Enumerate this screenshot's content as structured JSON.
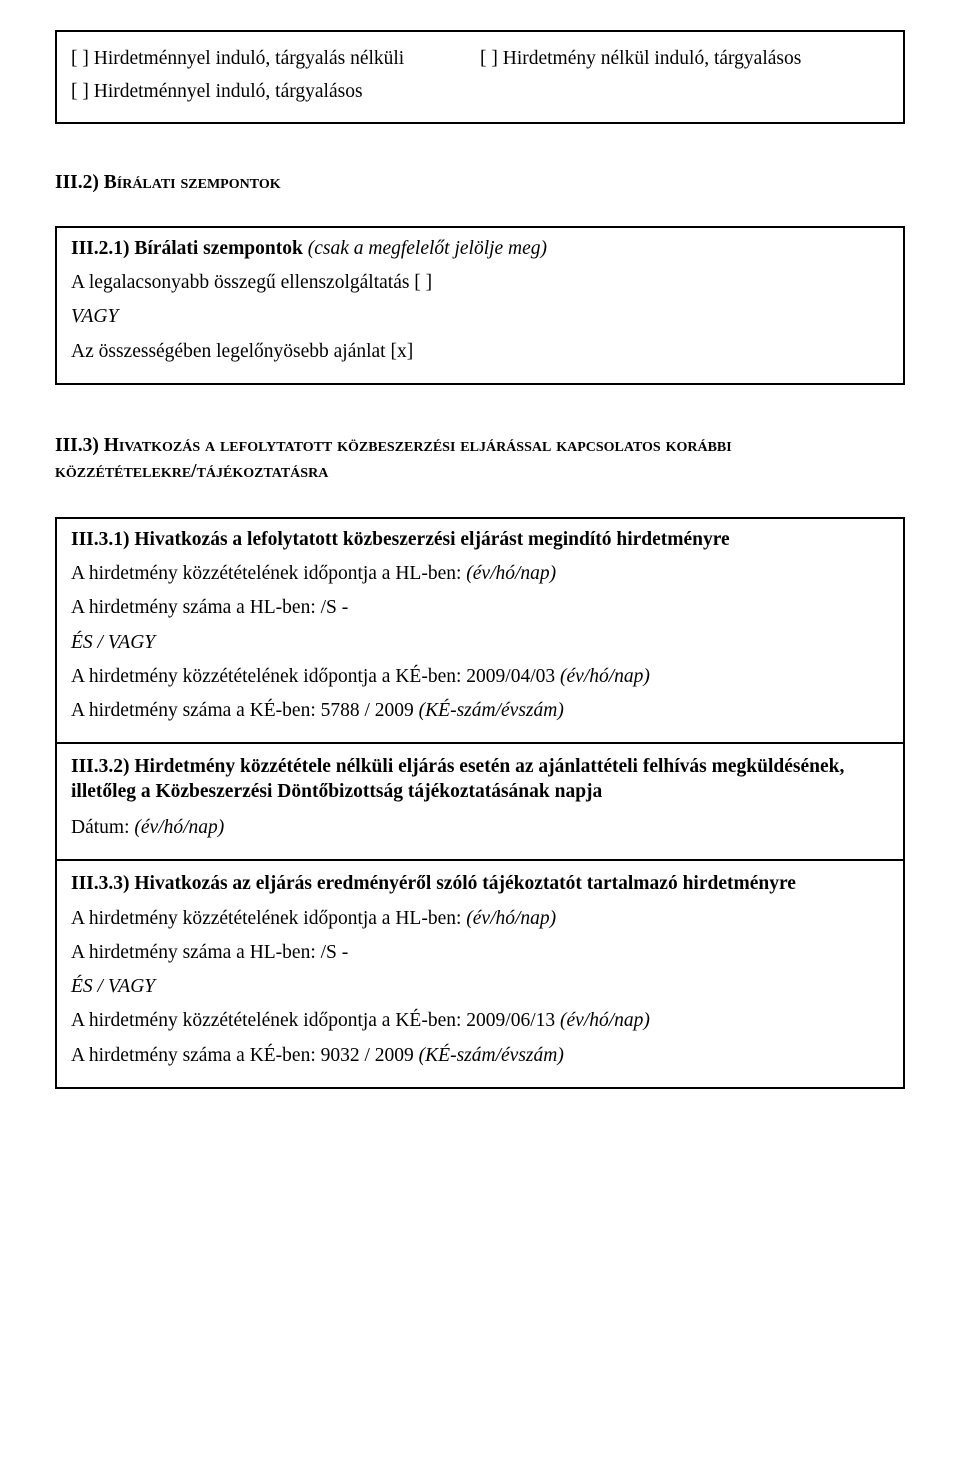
{
  "procedureOptions": {
    "opt1": "[ ] Hirdetménnyel induló, tárgyalás nélküli",
    "opt2": "[ ] Hirdetmény nélkül induló, tárgyalásos",
    "opt3": "[ ] Hirdetménnyel induló, tárgyalásos"
  },
  "sectionIII2": {
    "heading": "III.2) Bírálati szempontok",
    "sub1": {
      "title": "III.2.1) Bírálati szempontok ",
      "titleNote": "(csak a megfelelőt jelölje meg)",
      "line1": "A legalacsonyabb összegű ellenszolgáltatás [ ]",
      "vagy": "VAGY",
      "line2": "Az összességében legelőnyösebb ajánlat [x]"
    }
  },
  "sectionIII3": {
    "heading": "III.3) Hivatkozás a lefolytatott közbeszerzési eljárással kapcsolatos korábbi közzétételekre/tájékoztatásra",
    "block1": {
      "title": "III.3.1) Hivatkozás a lefolytatott közbeszerzési eljárást megindító hirdetményre",
      "l1a": "A hirdetmény közzétételének időpontja a HL-ben: ",
      "l1b": "(év/hó/nap)",
      "l2": "A hirdetmény száma a HL-ben: /S -",
      "esvagy": "ÉS / VAGY",
      "l3a": "A hirdetmény közzétételének időpontja a KÉ-ben: 2009/04/03 ",
      "l3b": "(év/hó/nap)",
      "l4a": "A hirdetmény száma a KÉ-ben: 5788 / 2009 ",
      "l4b": "(KÉ-szám/évszám)"
    },
    "block2": {
      "title": "III.3.2) Hirdetmény közzététele nélküli eljárás esetén az ajánlattételi felhívás megküldésének, illetőleg a Közbeszerzési Döntőbizottság tájékoztatásának napja",
      "l1a": "Dátum: ",
      "l1b": "(év/hó/nap)"
    },
    "block3": {
      "title": "III.3.3) Hivatkozás az eljárás eredményéről szóló tájékoztatót tartalmazó hirdetményre",
      "l1a": "A hirdetmény közzétételének időpontja a HL-ben: ",
      "l1b": "(év/hó/nap)",
      "l2": "A hirdetmény száma a HL-ben: /S -",
      "esvagy": "ÉS / VAGY",
      "l3a": "A hirdetmény közzétételének időpontja a KÉ-ben: 2009/06/13 ",
      "l3b": "(év/hó/nap)",
      "l4a": "A hirdetmény száma a KÉ-ben: 9032 / 2009 ",
      "l4b": "(KÉ-szám/évszám)"
    }
  }
}
